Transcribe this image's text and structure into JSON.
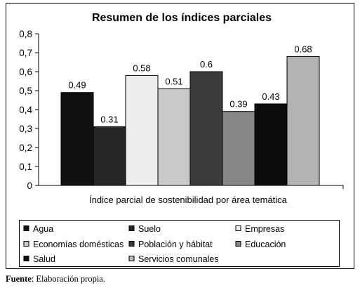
{
  "chart_data": {
    "type": "bar",
    "title": "Resumen de los índices parciales",
    "xlabel": "Índice parcial de sostenibilidad por área temática",
    "ylabel": "",
    "ylim": [
      0,
      0.8
    ],
    "yticks": [
      "0",
      "0,1",
      "0,2",
      "0,3",
      "0,4",
      "0,5",
      "0,6",
      "0,7",
      "0,8"
    ],
    "grid": false,
    "legend_position": "bottom",
    "series": [
      {
        "name": "Agua",
        "value": 0.49,
        "label": "0.49",
        "color": "#111111"
      },
      {
        "name": "Suelo",
        "value": 0.31,
        "label": "0.31",
        "color": "#262626"
      },
      {
        "name": "Empresas",
        "value": 0.58,
        "label": "0.58",
        "color": "#ededed"
      },
      {
        "name": "Economías domésticas",
        "value": 0.51,
        "label": "0.51",
        "color": "#c9c9c9"
      },
      {
        "name": "Población y hábitat",
        "value": 0.6,
        "label": "0.6",
        "color": "#3b3b3b"
      },
      {
        "name": "Educación",
        "value": 0.39,
        "label": "0.39",
        "color": "#878787"
      },
      {
        "name": "Salud",
        "value": 0.43,
        "label": "0.43",
        "color": "#0c0c0c"
      },
      {
        "name": "Servicios comunales",
        "value": 0.68,
        "label": "0.68",
        "color": "#b3b3b3"
      }
    ]
  },
  "source": {
    "label": "Fuente",
    "text": ": Elaboración propia."
  }
}
